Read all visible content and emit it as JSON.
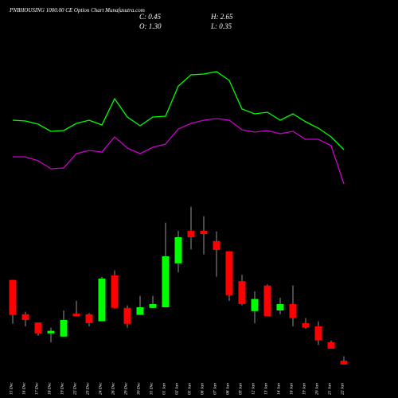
{
  "header": {
    "title": "PNBHOUSING 1000.00 CE Option Chart Munafasutra.com",
    "close": "C: 0.45",
    "high": "H: 2.65",
    "open": "O: 1.30",
    "low": "L: 0.35"
  },
  "chart_data": {
    "type": "candlestick",
    "categories": [
      "15 Dec",
      "16 Dec",
      "17 Dec",
      "18 Dec",
      "19 Dec",
      "22 Dec",
      "23 Dec",
      "24 Dec",
      "26 Dec",
      "29 Dec",
      "30 Dec",
      "31 Dec",
      "01 Jan",
      "02 Jan",
      "05 Jan",
      "06 Jan",
      "07 Jan",
      "08 Jan",
      "09 Jan",
      "12 Jan",
      "13 Jan",
      "14 Jan",
      "16 Jan",
      "19 Jan",
      "20 Jan",
      "21 Jan",
      "22 Jan"
    ],
    "open": [
      1.48,
      0.94,
      0.81,
      0.64,
      0.59,
      0.95,
      0.94,
      0.83,
      1.55,
      1.04,
      0.93,
      1.04,
      1.05,
      1.74,
      2.25,
      2.25,
      2.09,
      1.93,
      1.46,
      0.99,
      1.39,
      1.0,
      1.1,
      0.8,
      0.75,
      0.5,
      0.21
    ],
    "high": [
      1.48,
      0.98,
      0.81,
      0.73,
      1.0,
      1.15,
      0.96,
      1.53,
      1.63,
      1.08,
      1.23,
      1.23,
      2.38,
      2.25,
      2.63,
      2.48,
      2.24,
      1.93,
      1.56,
      1.3,
      1.41,
      1.2,
      1.39,
      0.88,
      0.83,
      0.53,
      0.28
    ],
    "low": [
      0.79,
      0.75,
      0.6,
      0.5,
      0.59,
      0.91,
      0.75,
      0.83,
      1.03,
      0.73,
      0.93,
      1.04,
      1.05,
      1.6,
      1.96,
      1.88,
      1.53,
      1.15,
      1.08,
      0.8,
      0.91,
      0.94,
      0.75,
      0.71,
      0.46,
      0.4,
      0.15
    ],
    "close": [
      0.93,
      0.85,
      0.64,
      0.68,
      0.85,
      0.91,
      0.8,
      1.5,
      1.04,
      0.79,
      1.05,
      1.1,
      1.85,
      2.15,
      2.15,
      2.2,
      1.95,
      1.24,
      1.1,
      1.18,
      0.91,
      1.1,
      0.88,
      0.73,
      0.53,
      0.4,
      0.15
    ],
    "up_color": "#00ff00",
    "down_color": "#ff0000",
    "ylim": [
      0,
      3.25
    ],
    "y2lim": [
      0,
      12.5
    ],
    "series": [
      {
        "color": "#00ff00",
        "axis": "y2",
        "values": [
          4.95,
          4.9,
          4.7,
          4.25,
          4.3,
          4.75,
          4.95,
          4.65,
          6.3,
          5.15,
          4.6,
          5.15,
          5.2,
          7.1,
          7.8,
          7.85,
          8.0,
          7.45,
          5.65,
          5.35,
          5.45,
          4.95,
          5.35,
          4.85,
          4.45,
          3.9,
          3.1
        ]
      },
      {
        "color": "#cc00cc",
        "axis": "y2",
        "values": [
          2.65,
          2.65,
          2.4,
          1.9,
          1.95,
          2.85,
          3.05,
          2.95,
          3.9,
          3.2,
          2.85,
          3.25,
          3.45,
          4.4,
          4.75,
          4.95,
          5.05,
          4.95,
          4.35,
          4.2,
          4.3,
          4.1,
          4.25,
          3.75,
          3.75,
          3.35,
          0.95
        ]
      }
    ]
  }
}
